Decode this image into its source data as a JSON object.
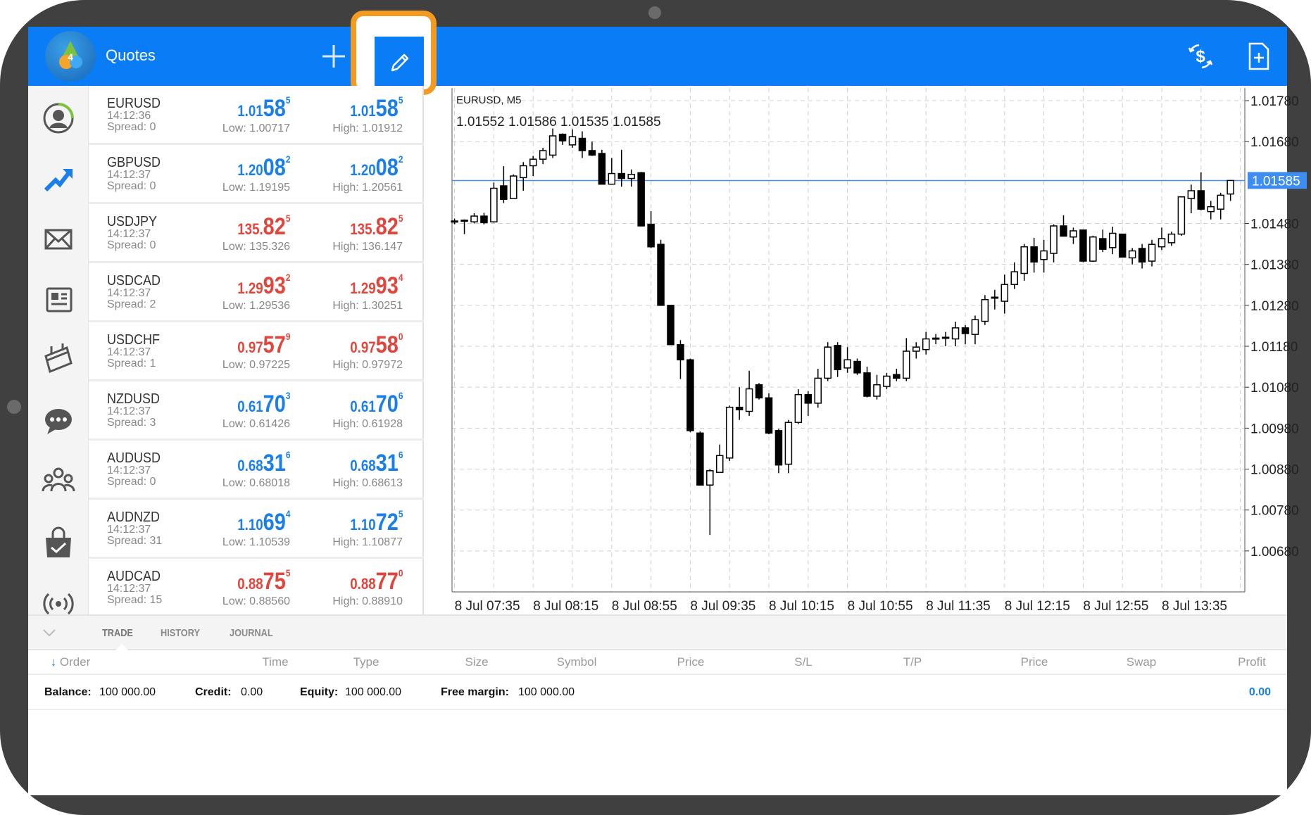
{
  "app": {
    "title": "Quotes",
    "accent": "#0a7cf5",
    "highlight": "#f29a21",
    "bull_color": "#1a7fea",
    "bear_color": "#e0463c"
  },
  "toolbar": {
    "icons": [
      "plus-icon",
      "pencil-edit-icon",
      "currency-exchange-icon",
      "new-document-icon"
    ]
  },
  "sidebar": {
    "items": [
      {
        "icon": "account-icon",
        "active": false
      },
      {
        "icon": "chart-trend-icon",
        "active": true
      },
      {
        "icon": "mail-icon",
        "active": false
      },
      {
        "icon": "news-icon",
        "active": false
      },
      {
        "icon": "calendar-icon",
        "active": false
      },
      {
        "icon": "chat-icon",
        "active": false
      },
      {
        "icon": "community-icon",
        "active": false
      },
      {
        "icon": "market-bag-icon",
        "active": false
      },
      {
        "icon": "signal-icon",
        "active": false
      }
    ]
  },
  "quotes": [
    {
      "symbol": "EURUSD",
      "time": "14:12:36",
      "spread": "Spread: 0",
      "dir": "up",
      "bid": {
        "pre": "1.01",
        "big": "58",
        "sup": "5"
      },
      "ask": {
        "pre": "1.01",
        "big": "58",
        "sup": "5"
      },
      "low": "Low: 1.00717",
      "high": "High: 1.01912"
    },
    {
      "symbol": "GBPUSD",
      "time": "14:12:37",
      "spread": "Spread: 0",
      "dir": "up",
      "bid": {
        "pre": "1.20",
        "big": "08",
        "sup": "2"
      },
      "ask": {
        "pre": "1.20",
        "big": "08",
        "sup": "2"
      },
      "low": "Low: 1.19195",
      "high": "High: 1.20561"
    },
    {
      "symbol": "USDJPY",
      "time": "14:12:37",
      "spread": "Spread: 0",
      "dir": "down",
      "bid": {
        "pre": "135.",
        "big": "82",
        "sup": "5"
      },
      "ask": {
        "pre": "135.",
        "big": "82",
        "sup": "5"
      },
      "low": "Low: 135.326",
      "high": "High: 136.147"
    },
    {
      "symbol": "USDCAD",
      "time": "14:12:37",
      "spread": "Spread: 2",
      "dir": "down",
      "bid": {
        "pre": "1.29",
        "big": "93",
        "sup": "2"
      },
      "ask": {
        "pre": "1.29",
        "big": "93",
        "sup": "4"
      },
      "low": "Low: 1.29536",
      "high": "High: 1.30251"
    },
    {
      "symbol": "USDCHF",
      "time": "14:12:37",
      "spread": "Spread: 1",
      "dir": "down",
      "bid": {
        "pre": "0.97",
        "big": "57",
        "sup": "9"
      },
      "ask": {
        "pre": "0.97",
        "big": "58",
        "sup": "0"
      },
      "low": "Low: 0.97225",
      "high": "High: 0.97972"
    },
    {
      "symbol": "NZDUSD",
      "time": "14:12:37",
      "spread": "Spread: 3",
      "dir": "up",
      "bid": {
        "pre": "0.61",
        "big": "70",
        "sup": "3"
      },
      "ask": {
        "pre": "0.61",
        "big": "70",
        "sup": "6"
      },
      "low": "Low: 0.61426",
      "high": "High: 0.61928"
    },
    {
      "symbol": "AUDUSD",
      "time": "14:12:37",
      "spread": "Spread: 0",
      "dir": "up",
      "bid": {
        "pre": "0.68",
        "big": "31",
        "sup": "6"
      },
      "ask": {
        "pre": "0.68",
        "big": "31",
        "sup": "6"
      },
      "low": "Low: 0.68018",
      "high": "High: 0.68613"
    },
    {
      "symbol": "AUDNZD",
      "time": "14:12:37",
      "spread": "Spread: 31",
      "dir": "up",
      "bid": {
        "pre": "1.10",
        "big": "69",
        "sup": "4"
      },
      "ask": {
        "pre": "1.10",
        "big": "72",
        "sup": "5"
      },
      "low": "Low: 1.10539",
      "high": "High: 1.10877"
    },
    {
      "symbol": "AUDCAD",
      "time": "14:12:37",
      "spread": "Spread: 15",
      "dir": "down",
      "bid": {
        "pre": "0.88",
        "big": "75",
        "sup": "5"
      },
      "ask": {
        "pre": "0.88",
        "big": "77",
        "sup": "0"
      },
      "low": "Low: 0.88560",
      "high": "High: 0.88910"
    }
  ],
  "chart_data": {
    "type": "candlestick",
    "title": "EURUSD, M5",
    "ohlc_label": "1.01552 1.01586 1.01535 1.01585",
    "current_price": 1.01585,
    "current_price_label": "1.01585",
    "ylim": [
      1.0058,
      1.01811
    ],
    "grid": true,
    "y_ticks": [
      "1.01780",
      "1.01680",
      "1.01480",
      "1.01380",
      "1.01280",
      "1.01180",
      "1.01080",
      "1.00980",
      "1.00880",
      "1.00780",
      "1.00680"
    ],
    "x_ticks": [
      "8 Jul 07:35",
      "8 Jul 08:15",
      "8 Jul 08:55",
      "8 Jul 09:35",
      "8 Jul 10:15",
      "8 Jul 10:55",
      "8 Jul 11:35",
      "8 Jul 12:15",
      "8 Jul 12:55",
      "8 Jul 13:35"
    ],
    "interval_minutes": 5,
    "candles": [
      [
        1.01486,
        1.01492,
        1.01478,
        1.01484
      ],
      [
        1.01488,
        1.0149,
        1.01454,
        1.01486
      ],
      [
        1.01484,
        1.01505,
        1.0148,
        1.01498
      ],
      [
        1.01498,
        1.01506,
        1.01478,
        1.01482
      ],
      [
        1.01484,
        1.0158,
        1.01482,
        1.01566
      ],
      [
        1.01572,
        1.0162,
        1.0153,
        1.01539
      ],
      [
        1.01541,
        1.016,
        1.01541,
        1.01596
      ],
      [
        1.01592,
        1.0163,
        1.0156,
        1.01621
      ],
      [
        1.01621,
        1.01645,
        1.01596,
        1.01637
      ],
      [
        1.01637,
        1.01665,
        1.01625,
        1.01658
      ],
      [
        1.01647,
        1.01712,
        1.0164,
        1.01694
      ],
      [
        1.01698,
        1.017,
        1.01672,
        1.01682
      ],
      [
        1.01672,
        1.0171,
        1.01665,
        1.01692
      ],
      [
        1.01688,
        1.01705,
        1.0164,
        1.01658
      ],
      [
        1.01658,
        1.0168,
        1.01645,
        1.01647
      ],
      [
        1.01651,
        1.0166,
        1.01576,
        1.01576
      ],
      [
        1.01576,
        1.0164,
        1.01576,
        1.01602
      ],
      [
        1.01602,
        1.0166,
        1.0157,
        1.0159
      ],
      [
        1.0159,
        1.01612,
        1.0157,
        1.016
      ],
      [
        1.01604,
        1.01606,
        1.01474,
        1.01474
      ],
      [
        1.01478,
        1.0151,
        1.0142,
        1.01423
      ],
      [
        1.01429,
        1.0144,
        1.0128,
        1.0128
      ],
      [
        1.0128,
        1.0128,
        1.01184,
        1.01184
      ],
      [
        1.01184,
        1.01195,
        1.011,
        1.01147
      ],
      [
        1.01147,
        1.0115,
        1.0097,
        1.00974
      ],
      [
        1.00968,
        1.00972,
        1.00841,
        1.00841
      ],
      [
        1.00841,
        1.0088,
        1.00719,
        1.00876
      ],
      [
        1.00872,
        1.0094,
        1.00872,
        1.00913
      ],
      [
        1.00907,
        1.01035,
        1.009,
        1.01031
      ],
      [
        1.01031,
        1.0108,
        1.01,
        1.01025
      ],
      [
        1.01021,
        1.0112,
        1.0101,
        1.01076
      ],
      [
        1.01086,
        1.0109,
        1.0105,
        1.01054
      ],
      [
        1.01054,
        1.01065,
        1.00965,
        1.00968
      ],
      [
        1.00974,
        1.00978,
        1.0087,
        1.0089
      ],
      [
        1.00892,
        1.01,
        1.0087,
        1.00994
      ],
      [
        1.00994,
        1.01075,
        1.0099,
        1.01062
      ],
      [
        1.01062,
        1.0107,
        1.0101,
        1.01041
      ],
      [
        1.01041,
        1.01125,
        1.0103,
        1.01102
      ],
      [
        1.01102,
        1.0119,
        1.01095,
        1.01178
      ],
      [
        1.01182,
        1.0119,
        1.01105,
        1.01123
      ],
      [
        1.01127,
        1.01178,
        1.01115,
        1.01147
      ],
      [
        1.01143,
        1.0115,
        1.0111,
        1.01115
      ],
      [
        1.01115,
        1.0113,
        1.01055,
        1.01058
      ],
      [
        1.01058,
        1.0111,
        1.0105,
        1.01086
      ],
      [
        1.01082,
        1.01115,
        1.01075,
        1.01107
      ],
      [
        1.01111,
        1.01125,
        1.01095,
        1.01102
      ],
      [
        1.01102,
        1.012,
        1.01095,
        1.01168
      ],
      [
        1.01168,
        1.0119,
        1.0115,
        1.01178
      ],
      [
        1.01172,
        1.01215,
        1.0116,
        1.01198
      ],
      [
        1.01198,
        1.0121,
        1.01185,
        1.012
      ],
      [
        1.012,
        1.01215,
        1.0118,
        1.01202
      ],
      [
        1.01198,
        1.0124,
        1.0118,
        1.01225
      ],
      [
        1.01225,
        1.01232,
        1.01185,
        1.01211
      ],
      [
        1.01209,
        1.01255,
        1.01185,
        1.01245
      ],
      [
        1.01241,
        1.01305,
        1.01232,
        1.01294
      ],
      [
        1.013,
        1.01318,
        1.0127,
        1.013
      ],
      [
        1.0129,
        1.01355,
        1.0126,
        1.01331
      ],
      [
        1.01331,
        1.01385,
        1.0132,
        1.01362
      ],
      [
        1.01358,
        1.0143,
        1.0134,
        1.01423
      ],
      [
        1.01423,
        1.01445,
        1.0136,
        1.01386
      ],
      [
        1.01392,
        1.0144,
        1.0136,
        1.01413
      ],
      [
        1.01407,
        1.01478,
        1.01385,
        1.01474
      ],
      [
        1.01474,
        1.015,
        1.01449,
        1.01449
      ],
      [
        1.01447,
        1.0147,
        1.0143,
        1.01462
      ],
      [
        1.01464,
        1.01464,
        1.01385,
        1.01388
      ],
      [
        1.01388,
        1.0145,
        1.01386,
        1.01447
      ],
      [
        1.01443,
        1.01465,
        1.0141,
        1.01417
      ],
      [
        1.01421,
        1.01472,
        1.01405,
        1.01456
      ],
      [
        1.01454,
        1.01454,
        1.01398,
        1.01398
      ],
      [
        1.01396,
        1.0142,
        1.0138,
        1.01413
      ],
      [
        1.01419,
        1.0143,
        1.0137,
        1.01386
      ],
      [
        1.01388,
        1.0144,
        1.01375,
        1.01429
      ],
      [
        1.01423,
        1.0147,
        1.01415,
        1.01443
      ],
      [
        1.01433,
        1.0146,
        1.01425,
        1.01454
      ],
      [
        1.01454,
        1.01545,
        1.0145,
        1.01545
      ],
      [
        1.01541,
        1.01575,
        1.01505,
        1.0156
      ],
      [
        1.0156,
        1.01605,
        1.01512,
        1.01515
      ],
      [
        1.01509,
        1.01535,
        1.0149,
        1.01521
      ],
      [
        1.01515,
        1.01555,
        1.0149,
        1.01549
      ],
      [
        1.01552,
        1.01586,
        1.01535,
        1.01585
      ]
    ]
  },
  "terminal": {
    "tabs": [
      {
        "label": "TRADE",
        "active": true
      },
      {
        "label": "HISTORY",
        "active": false
      },
      {
        "label": "JOURNAL",
        "active": false
      }
    ],
    "columns": [
      "Order",
      "Time",
      "Type",
      "Size",
      "Symbol",
      "Price",
      "S/L",
      "T/P",
      "Price",
      "Swap",
      "Profit"
    ],
    "balance": {
      "label": "Balance:",
      "value": "100 000.00"
    },
    "credit": {
      "label": "Credit:",
      "value": "0.00"
    },
    "equity": {
      "label": "Equity:",
      "value": "100 000.00"
    },
    "free_margin": {
      "label": "Free margin:",
      "value": "100 000.00"
    },
    "profit": "0.00"
  }
}
